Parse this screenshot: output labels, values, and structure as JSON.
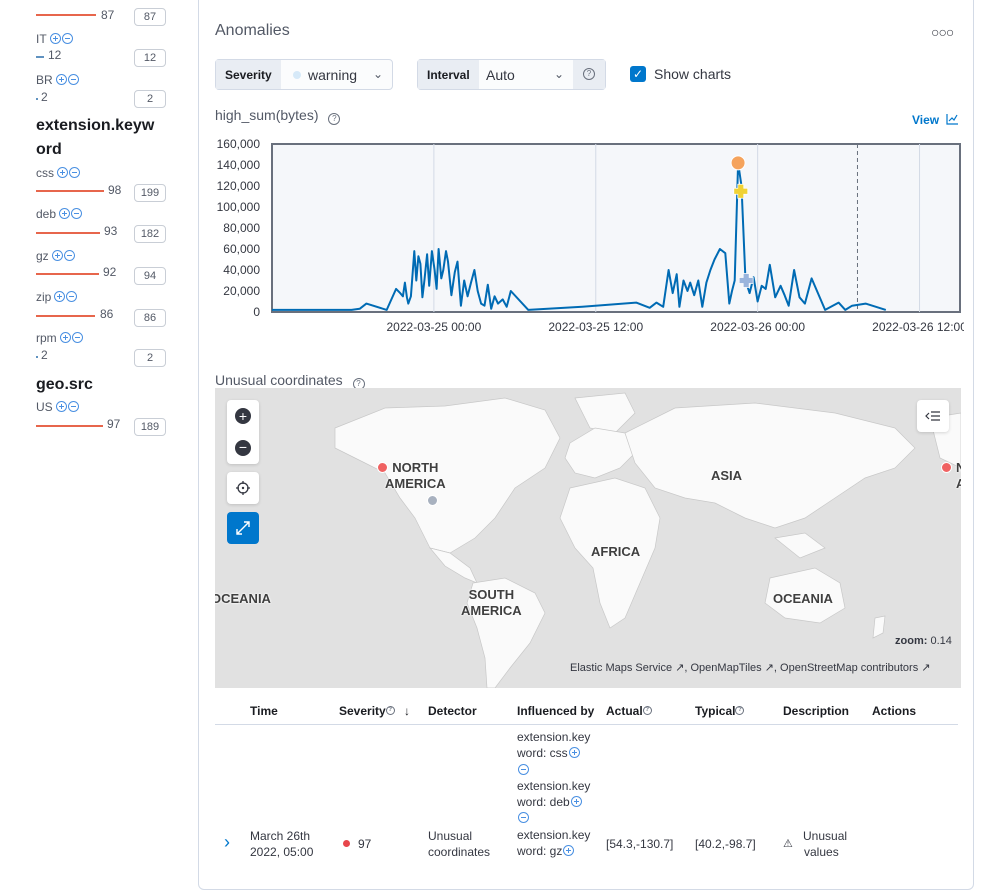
{
  "sidebar": {
    "groups": [
      {
        "heading": "",
        "items": [
          {
            "label": "IT",
            "score": "12",
            "count": "12",
            "color": "#6092c0"
          },
          {
            "label": "BR",
            "score": "2",
            "count": "2",
            "color": "#6092c0"
          }
        ]
      },
      {
        "heading": "extension.keyword",
        "items": [
          {
            "label": "css",
            "score": "98",
            "count": "199",
            "color": "#e7664c"
          },
          {
            "label": "deb",
            "score": "93",
            "count": "182",
            "color": "#e7664c"
          },
          {
            "label": "gz",
            "score": "92",
            "count": "94",
            "color": "#e7664c"
          },
          {
            "label": "zip",
            "score": "86",
            "count": "86",
            "color": "#e7664c"
          },
          {
            "label": "rpm",
            "score": "2",
            "count": "2",
            "color": "#6092c0"
          }
        ]
      },
      {
        "heading": "geo.src",
        "items": [
          {
            "label": "US",
            "score": "97",
            "count": "189",
            "color": "#e7664c"
          }
        ]
      }
    ],
    "top_partial": {
      "score": "87",
      "count": "87"
    },
    "heading_line1": "extension.keyw",
    "heading_line2": "ord",
    "heading_geo": "geo.src"
  },
  "panel": {
    "title": "Anomalies",
    "severity_label": "Severity",
    "severity_value": "warning",
    "interval_label": "Interval",
    "interval_value": "Auto",
    "show_charts_label": "Show charts",
    "show_charts_checked": true
  },
  "chart_data": {
    "type": "line",
    "title": "high_sum(bytes)",
    "view_label": "View",
    "y_ticks": [
      "160,000",
      "140,000",
      "120,000",
      "100,000",
      "80,000",
      "60,000",
      "40,000",
      "20,000",
      "0"
    ],
    "ylim": [
      0,
      160000
    ],
    "x_ticks": [
      "2022-03-25 00:00",
      "2022-03-25 12:00",
      "2022-03-26 00:00",
      "2022-03-26 12:00"
    ],
    "x_start": "2022-03-24 21:00",
    "x_end": "2022-03-26 18:00",
    "series": [
      {
        "color": "#006bb4",
        "x": [
          -6,
          -0.1,
          0.5,
          1,
          2.5,
          3.2,
          3.5,
          3.7,
          3.85,
          4,
          4.1,
          4.3,
          4.55,
          4.7,
          4.85,
          5,
          5.15,
          5.3,
          5.5,
          5.65,
          5.85,
          6.05,
          6.2,
          6.35,
          6.55,
          6.7,
          6.9,
          7.05,
          7.3,
          7.55,
          7.75,
          8,
          8.25,
          8.5,
          8.75,
          9,
          9.25,
          9.5,
          9.75,
          10,
          10.25,
          10.5,
          10.75,
          11.1,
          11.4,
          11.7,
          13,
          17,
          21,
          22,
          22.5,
          23,
          23.4,
          23.7,
          24,
          24.2,
          24.5,
          24.8,
          25,
          25.3,
          25.6,
          25.9,
          26.2,
          26.5,
          26.8,
          27.2,
          27.6,
          27.9,
          28.1,
          28.3,
          28.55,
          28.8,
          29.1,
          29.4,
          29.7,
          30,
          30.3,
          30.6,
          30.9,
          31.3,
          31.7,
          32,
          32.3,
          32.7,
          33.1,
          33.5,
          34,
          35,
          36,
          36.5,
          37,
          38,
          39,
          39.5
        ],
        "y": [
          2000,
          2000,
          3000,
          8000,
          2000,
          22000,
          18000,
          15000,
          28000,
          14000,
          8000,
          15000,
          58000,
          30000,
          53000,
          46000,
          14000,
          30000,
          55000,
          25000,
          58000,
          40000,
          22000,
          60000,
          32000,
          40000,
          58000,
          48000,
          16000,
          38000,
          48000,
          6000,
          30000,
          15000,
          28000,
          40000,
          20000,
          8000,
          6000,
          26000,
          3000,
          15000,
          8000,
          12000,
          5000,
          20000,
          2000,
          5000,
          9000,
          4000,
          9000,
          5000,
          40000,
          18000,
          36000,
          5000,
          30000,
          20000,
          28000,
          16000,
          30000,
          5000,
          28000,
          40000,
          50000,
          60000,
          56000,
          8000,
          20000,
          30000,
          142000,
          120000,
          30000,
          18000,
          33000,
          10000,
          25000,
          22000,
          45000,
          14000,
          25000,
          16000,
          6000,
          40000,
          14000,
          8000,
          32000,
          2000,
          9000,
          2000,
          6000,
          8000,
          4000,
          2000
        ]
      }
    ],
    "annotation_dashed_x": 37.4
  },
  "anomaly_markers": [
    {
      "x": 28.55,
      "y": 142000,
      "shape": "circle",
      "color": "#f5a35c",
      "severity": "warning"
    },
    {
      "x": 28.75,
      "y": 115000,
      "shape": "plus",
      "color": "#f0d234"
    },
    {
      "x": 29.15,
      "y": 30000,
      "shape": "plus",
      "color": "#9ab4dc"
    }
  ],
  "map": {
    "title": "Unusual coordinates",
    "labels": {
      "north_america": "NORTH\nAMERICA",
      "south_america": "SOUTH\nAMERICA",
      "asia": "ASIA",
      "africa": "AFRICA",
      "oceania_left": "OCEANIA",
      "oceania_right": "OCEANIA",
      "na_right": "N\nA"
    },
    "zoom_label": "zoom:",
    "zoom_value": "0.14",
    "attribution": [
      "Elastic Maps Service",
      "OpenMapTiles",
      "OpenStreetMap contributors"
    ],
    "actual_color": "#f06262",
    "typical_color": "#a8b1bf"
  },
  "table": {
    "headers": {
      "time": "Time",
      "severity": "Severity",
      "detector": "Detector",
      "influenced_by": "Influenced by",
      "actual": "Actual",
      "typical": "Typical",
      "description": "Description",
      "actions": "Actions"
    },
    "row": {
      "time_line1": "March 26th",
      "time_line2": "2022, 05:00",
      "severity": "97",
      "detector_line1": "Unusual",
      "detector_line2": "coordinates",
      "influencers": [
        {
          "line1": "extension.key",
          "line2": "word: css"
        },
        {
          "line1": "extension.key",
          "line2": "word: deb"
        },
        {
          "line1": "extension.key",
          "line2": "word: gz"
        }
      ],
      "actual": "[54.3,-130.7]",
      "typical": "[40.2,-98.7]",
      "description_line1": "Unusual",
      "description_line2": "values"
    }
  }
}
